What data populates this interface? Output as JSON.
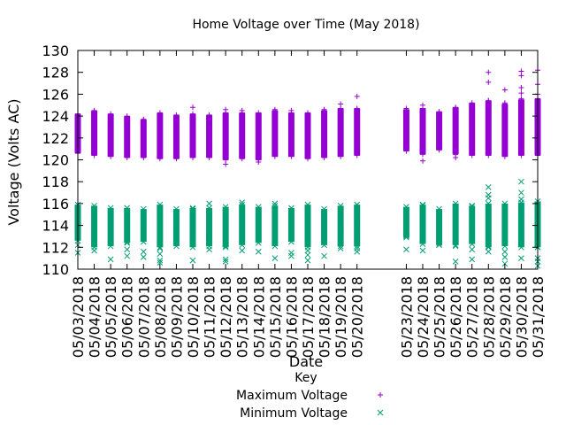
{
  "chart_data": {
    "type": "scatter",
    "title": "Home Voltage over Time (May 2018)",
    "xlabel": "Date",
    "ylabel": "Voltage (Volts AC)",
    "ylim": [
      110,
      130
    ],
    "yticks": [
      110,
      112,
      114,
      116,
      118,
      120,
      122,
      124,
      126,
      128,
      130
    ],
    "xrange_day": [
      3,
      31
    ],
    "grid": false,
    "legend": {
      "title": "Key",
      "placement": "bottom-center",
      "entries": [
        "Maximum Voltage",
        "Minimum Voltage"
      ]
    },
    "dates": [
      "05/03/2018",
      "05/04/2018",
      "05/05/2018",
      "05/06/2018",
      "05/07/2018",
      "05/08/2018",
      "05/09/2018",
      "05/10/2018",
      "05/11/2018",
      "05/12/2018",
      "05/13/2018",
      "05/14/2018",
      "05/15/2018",
      "05/16/2018",
      "05/17/2018",
      "05/18/2018",
      "05/19/2018",
      "05/20/2018",
      "05/23/2018",
      "05/24/2018",
      "05/25/2018",
      "05/26/2018",
      "05/27/2018",
      "05/28/2018",
      "05/29/2018",
      "05/30/2018",
      "05/31/2018"
    ],
    "series": [
      {
        "name": "Maximum Voltage",
        "marker": "+",
        "color": "#9400d3",
        "days": [
          3,
          4,
          5,
          6,
          7,
          8,
          9,
          10,
          11,
          12,
          13,
          14,
          15,
          16,
          17,
          18,
          19,
          20,
          23,
          24,
          25,
          26,
          27,
          28,
          29,
          30,
          31
        ],
        "low": [
          120.6,
          120.4,
          120.3,
          120.2,
          120.2,
          120.1,
          120.1,
          120.2,
          120.2,
          120.0,
          120.1,
          120.0,
          120.3,
          120.3,
          120.1,
          120.2,
          120.3,
          120.4,
          120.8,
          120.5,
          120.9,
          120.5,
          120.4,
          120.4,
          120.3,
          120.4,
          120.4
        ],
        "high": [
          124.2,
          124.5,
          124.2,
          124.0,
          123.7,
          124.3,
          124.1,
          124.2,
          124.1,
          124.3,
          124.3,
          124.3,
          124.5,
          124.3,
          124.3,
          124.5,
          124.7,
          124.7,
          124.6,
          124.7,
          124.4,
          124.8,
          125.2,
          125.4,
          125.1,
          125.5,
          125.6
        ],
        "outliers": [
          [
            6,
            123.8
          ],
          [
            7,
            123.5
          ],
          [
            10,
            124.8
          ],
          [
            11,
            123.9
          ],
          [
            12,
            124.6
          ],
          [
            12,
            119.6
          ],
          [
            13,
            124.5
          ],
          [
            14,
            119.8
          ],
          [
            15,
            124.6
          ],
          [
            16,
            124.5
          ],
          [
            18,
            124.6
          ],
          [
            19,
            125.1
          ],
          [
            20,
            125.8
          ],
          [
            20,
            124.6
          ],
          [
            23,
            124.7
          ],
          [
            24,
            125.0
          ],
          [
            24,
            119.9
          ],
          [
            26,
            124.7
          ],
          [
            26,
            120.2
          ],
          [
            27,
            125.0
          ],
          [
            28,
            128.0
          ],
          [
            28,
            127.1
          ],
          [
            28,
            125.4
          ],
          [
            29,
            126.4
          ],
          [
            29,
            125.2
          ],
          [
            30,
            128.1
          ],
          [
            30,
            127.7
          ],
          [
            30,
            126.6
          ],
          [
            30,
            126.1
          ],
          [
            30,
            125.6
          ],
          [
            31,
            128.2
          ],
          [
            31,
            126.9
          ],
          [
            31,
            126.0
          ],
          [
            31,
            125.2
          ],
          [
            31,
            120.7
          ]
        ]
      },
      {
        "name": "Minimum Voltage",
        "marker": "x",
        "color": "#009e73",
        "days": [
          3,
          4,
          5,
          6,
          7,
          8,
          9,
          10,
          11,
          12,
          13,
          14,
          15,
          16,
          17,
          18,
          19,
          20,
          23,
          24,
          25,
          26,
          27,
          28,
          29,
          30,
          31
        ],
        "low": [
          112.6,
          112.0,
          112.1,
          112.4,
          112.5,
          112.0,
          112.1,
          112.0,
          112.1,
          112.0,
          112.2,
          112.4,
          112.1,
          112.5,
          112.0,
          112.2,
          112.1,
          112.1,
          112.9,
          112.3,
          112.2,
          112.2,
          112.3,
          112.0,
          112.1,
          112.0,
          112.0
        ],
        "high": [
          115.9,
          115.8,
          115.6,
          115.6,
          115.5,
          115.9,
          115.5,
          115.6,
          115.6,
          115.7,
          115.9,
          115.7,
          115.8,
          115.6,
          115.9,
          115.5,
          115.8,
          115.9,
          115.7,
          115.9,
          115.5,
          116.0,
          115.8,
          116.0,
          116.0,
          116.1,
          116.2
        ],
        "outliers": [
          [
            3,
            111.5
          ],
          [
            3,
            112.2
          ],
          [
            4,
            111.7
          ],
          [
            5,
            110.9
          ],
          [
            6,
            111.8
          ],
          [
            6,
            111.2
          ],
          [
            7,
            111.6
          ],
          [
            7,
            111.1
          ],
          [
            8,
            111.4
          ],
          [
            8,
            110.8
          ],
          [
            8,
            110.6
          ],
          [
            8,
            111.9
          ],
          [
            10,
            110.8
          ],
          [
            11,
            116.0
          ],
          [
            11,
            111.8
          ],
          [
            12,
            110.9
          ],
          [
            12,
            110.7
          ],
          [
            13,
            116.1
          ],
          [
            13,
            111.7
          ],
          [
            14,
            111.6
          ],
          [
            15,
            116.0
          ],
          [
            15,
            111.0
          ],
          [
            16,
            111.2
          ],
          [
            16,
            111.5
          ],
          [
            17,
            110.8
          ],
          [
            17,
            111.3
          ],
          [
            17,
            111.7
          ],
          [
            18,
            111.2
          ],
          [
            19,
            111.9
          ],
          [
            20,
            111.6
          ],
          [
            20,
            111.9
          ],
          [
            23,
            111.8
          ],
          [
            24,
            111.7
          ],
          [
            26,
            112.1
          ],
          [
            26,
            110.7
          ],
          [
            27,
            111.8
          ],
          [
            27,
            110.9
          ],
          [
            28,
            117.5
          ],
          [
            28,
            116.5
          ],
          [
            28,
            116.8
          ],
          [
            28,
            111.6
          ],
          [
            29,
            111.6
          ],
          [
            29,
            111.1
          ],
          [
            29,
            110.5
          ],
          [
            30,
            118.0
          ],
          [
            30,
            117.0
          ],
          [
            30,
            116.4
          ],
          [
            30,
            111.0
          ],
          [
            31,
            110.3
          ],
          [
            31,
            110.7
          ],
          [
            31,
            111.0
          ]
        ]
      }
    ]
  }
}
